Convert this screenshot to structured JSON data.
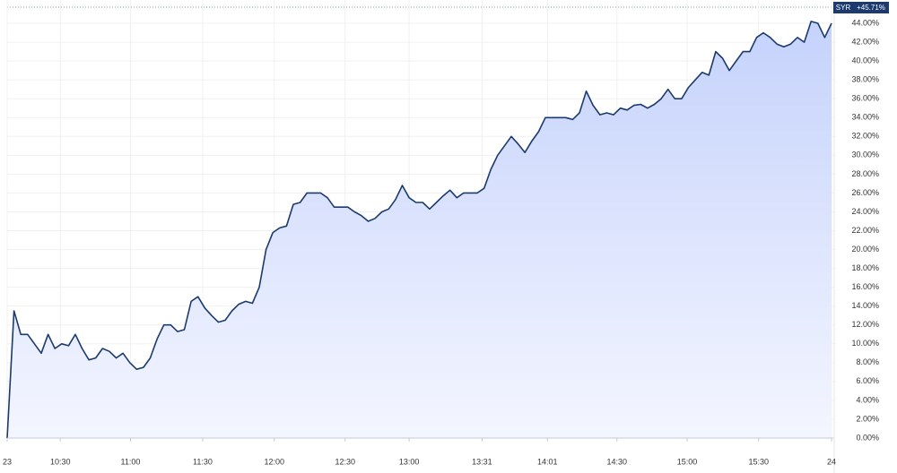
{
  "chart_data": {
    "type": "area",
    "series": [
      {
        "name": "SYR",
        "color": "#1c3a6e",
        "value_label": "+45.71%",
        "values": [
          0,
          13.5,
          11,
          11,
          10,
          9,
          11,
          9.5,
          10,
          9.8,
          11,
          9.5,
          8.3,
          8.5,
          9.5,
          9.2,
          8.5,
          9,
          8,
          7.3,
          7.5,
          8.5,
          10.5,
          12,
          12,
          11.3,
          11.5,
          14.5,
          15,
          13.8,
          13,
          12.3,
          12.5,
          13.5,
          14.2,
          14.5,
          14.3,
          16,
          20,
          21.8,
          22.3,
          22.5,
          24.8,
          25,
          26,
          26,
          26,
          25.5,
          24.5,
          24.5,
          24.5,
          24,
          23.6,
          23,
          23.3,
          24,
          24.3,
          25.3,
          26.8,
          25.5,
          25,
          25,
          24.3,
          25,
          25.7,
          26.3,
          25.5,
          26,
          26,
          26,
          26.5,
          28.5,
          30,
          31,
          32,
          31.2,
          30.3,
          31.5,
          32.5,
          34,
          34,
          34,
          34,
          33.8,
          34.5,
          36.8,
          35.3,
          34.3,
          34.5,
          34.3,
          35,
          34.8,
          35.3,
          35.4,
          35,
          35.4,
          36,
          37,
          36,
          36,
          37.2,
          38,
          38.8,
          38.5,
          41,
          40.3,
          39,
          40,
          41,
          41,
          42.5,
          43,
          42.5,
          41.8,
          41.5,
          41.8,
          42.5,
          42,
          44.2,
          44,
          42.5,
          44
        ]
      }
    ],
    "xlim": [
      0,
      121
    ],
    "xticks": [
      {
        "value": 0,
        "label": "23"
      },
      {
        "value": 7.8,
        "label": "10:30"
      },
      {
        "value": 18.1,
        "label": "11:00"
      },
      {
        "value": 28.7,
        "label": "11:30"
      },
      {
        "value": 39.2,
        "label": "12:00"
      },
      {
        "value": 49.6,
        "label": "12:30"
      },
      {
        "value": 59,
        "label": "13:00"
      },
      {
        "value": 69.7,
        "label": "13:31"
      },
      {
        "value": 79.3,
        "label": "14:01"
      },
      {
        "value": 89.5,
        "label": "14:30"
      },
      {
        "value": 99.8,
        "label": "15:00"
      },
      {
        "value": 110.3,
        "label": "15:30"
      },
      {
        "value": 121,
        "label": "24"
      }
    ],
    "ylim": [
      0,
      46
    ],
    "yticks": [
      {
        "value": 0,
        "label": "0.00%"
      },
      {
        "value": 2,
        "label": "2.00%"
      },
      {
        "value": 4,
        "label": "4.00%"
      },
      {
        "value": 6,
        "label": "6.00%"
      },
      {
        "value": 8,
        "label": "8.00%"
      },
      {
        "value": 10,
        "label": "10.00%"
      },
      {
        "value": 12,
        "label": "12.00%"
      },
      {
        "value": 14,
        "label": "14.00%"
      },
      {
        "value": 16,
        "label": "16.00%"
      },
      {
        "value": 18,
        "label": "18.00%"
      },
      {
        "value": 20,
        "label": "20.00%"
      },
      {
        "value": 22,
        "label": "22.00%"
      },
      {
        "value": 24,
        "label": "24.00%"
      },
      {
        "value": 26,
        "label": "26.00%"
      },
      {
        "value": 28,
        "label": "28.00%"
      },
      {
        "value": 30,
        "label": "30.00%"
      },
      {
        "value": 32,
        "label": "32.00%"
      },
      {
        "value": 34,
        "label": "34.00%"
      },
      {
        "value": 36,
        "label": "36.00%"
      },
      {
        "value": 38,
        "label": "38.00%"
      },
      {
        "value": 40,
        "label": "40.00%"
      },
      {
        "value": 42,
        "label": "42.00%"
      },
      {
        "value": 44,
        "label": "44.00%"
      }
    ],
    "grid": true
  }
}
